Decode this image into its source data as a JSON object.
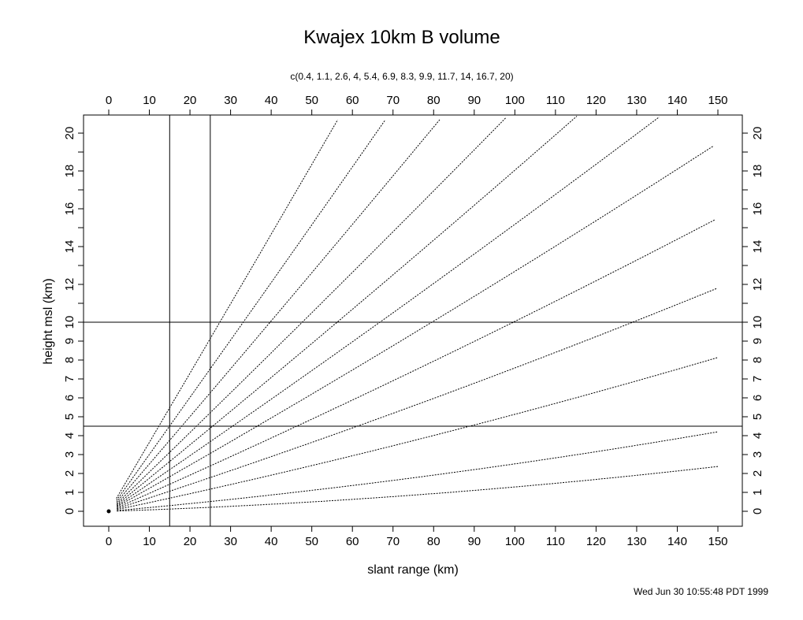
{
  "chart_data": {
    "type": "line",
    "title": "Kwajex 10km B volume",
    "subtitle": "c(0.4, 1.1, 2.6, 4, 5.4, 6.9, 8.3, 9.9, 11.7, 14, 16.7, 20)",
    "xlabel": "slant range (km)",
    "ylabel": "height msl (km)",
    "footer": "Wed Jun 30 10:55:48 PDT 1999",
    "xlim": [
      -6,
      156
    ],
    "ylim": [
      -1,
      21
    ],
    "x_ticks": [
      "0",
      "10",
      "20",
      "30",
      "40",
      "50",
      "60",
      "70",
      "80",
      "90",
      "100",
      "110",
      "120",
      "130",
      "140",
      "150"
    ],
    "x_tick_values": [
      0,
      10,
      20,
      30,
      40,
      50,
      60,
      70,
      80,
      90,
      100,
      110,
      120,
      130,
      140,
      150
    ],
    "y_ticks": [
      "0",
      "1",
      "2",
      "3",
      "4",
      "5",
      "6",
      "7",
      "8",
      "9",
      "10",
      "12",
      "14",
      "16",
      "18",
      "20"
    ],
    "y_tick_values": [
      0,
      1,
      2,
      3,
      4,
      5,
      6,
      7,
      8,
      9,
      10,
      12,
      14,
      16,
      18,
      20
    ],
    "y_minor_ticks": [
      11,
      13,
      15,
      17,
      19
    ],
    "elevation_angles_deg": [
      0.4,
      1.1,
      2.6,
      4,
      5.4,
      6.9,
      8.3,
      9.9,
      11.7,
      14,
      16.7,
      20
    ],
    "range_start_km": 2,
    "range_end_km": 150,
    "vertical_lines_km": [
      15,
      25
    ],
    "horizontal_lines_km": [
      10,
      4.5
    ],
    "origin_point": [
      0,
      0
    ]
  }
}
